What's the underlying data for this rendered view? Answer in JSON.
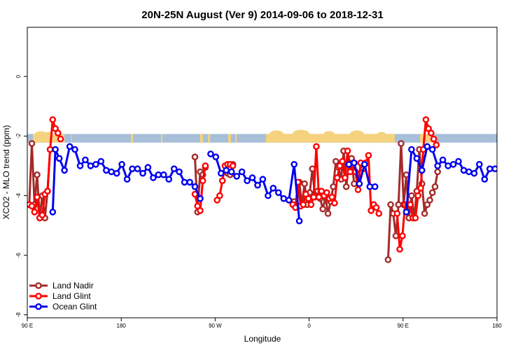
{
  "chart_data": {
    "type": "line",
    "title": "20N-25N August (Ver 9)   2014-09-06 to 2018-12-31",
    "xlabel": "Longitude",
    "ylabel": "XCO2 - MLO trend (ppm)",
    "xlim": [
      0,
      360
    ],
    "ylim": [
      -8.1,
      1.65
    ],
    "x_ticks": [
      {
        "value": 0,
        "label": "90 E"
      },
      {
        "value": 72,
        "label": "180"
      },
      {
        "value": 144,
        "label": "90 W"
      },
      {
        "value": 216,
        "label": "0"
      },
      {
        "value": 288,
        "label": "90 E"
      },
      {
        "value": 360,
        "label": "180"
      }
    ],
    "y_ticks": [
      {
        "value": 0,
        "label": "0"
      },
      {
        "value": -2,
        "label": "-2"
      },
      {
        "value": -4,
        "label": "-4"
      },
      {
        "value": -6,
        "label": "-6"
      },
      {
        "value": -8,
        "label": "-8"
      }
    ],
    "land_strip": {
      "y_top": -1.93,
      "y_bottom": -2.22,
      "ocean_color": "#a7bfd8",
      "land_color": "#f5d27e"
    },
    "legend_position": "bottom-left",
    "series": [
      {
        "name": "Land Nadir",
        "color": "#a52a2a",
        "x": [
          1.5,
          3.5,
          5.5,
          7.5,
          9.5,
          11.5,
          13.5,
          15.5,
          17.5,
          128.5,
          130.5,
          132.5,
          134.5,
          136.5,
          153.5,
          155.5,
          157.5,
          204.5,
          206.5,
          208.5,
          210.5,
          212.5,
          214.5,
          216.5,
          218.5,
          220.5,
          222.5,
          224.5,
          226.5,
          228.5,
          230.5,
          232.5,
          234.5,
          236.5,
          238.5,
          240.5,
          242.5,
          244.5,
          246.5,
          248.5,
          250.5,
          276.5,
          278.5,
          280.5,
          282.5,
          284.5,
          286.5,
          288.5,
          290.5,
          292.5,
          294.5,
          296.5,
          298.5,
          300.5,
          302.5,
          304.5,
          306.5,
          308.5,
          310.5,
          312.5,
          314.5
        ],
        "y": [
          -4.3,
          -2.25,
          -4.3,
          -3.3,
          -4.75,
          -4.0,
          -4.75,
          -3.85,
          -2.45,
          -2.7,
          -4.55,
          -3.2,
          -3.3,
          -3.05,
          -3.25,
          -3.3,
          -2.95,
          -4.2,
          -4.35,
          -3.55,
          -4.3,
          -3.6,
          -4.3,
          -3.9,
          -3.1,
          -4.05,
          -3.85,
          -4.1,
          -4.45,
          -4.05,
          -4.6,
          -4.2,
          -3.7,
          -2.85,
          -3.05,
          -3.45,
          -2.5,
          -3.7,
          -2.9,
          -2.75,
          -3.6,
          -6.15,
          -4.3,
          -4.6,
          -5.35,
          -4.3,
          -2.25,
          -4.3,
          -3.3,
          -4.75,
          -4.0,
          -4.75,
          -3.85,
          -2.45,
          -3.6,
          -4.6,
          -4.3,
          -4.15,
          -3.9,
          -3.7,
          -3.2
        ]
      },
      {
        "name": "Land Glint",
        "color": "#ff0000",
        "x": [
          1.5,
          3.5,
          5.5,
          7.5,
          9.5,
          11.5,
          13.5,
          15.5,
          17.5,
          19.5,
          21.5,
          23.5,
          25.5,
          128.5,
          130.5,
          132.5,
          134.5,
          136.5,
          145.5,
          147.5,
          149.5,
          151.5,
          153.5,
          155.5,
          157.5,
          203.5,
          205.5,
          207.5,
          209.5,
          211.5,
          213.5,
          215.5,
          217.5,
          219.5,
          221.5,
          223.5,
          225.5,
          227.5,
          229.5,
          231.5,
          233.5,
          235.5,
          237.5,
          239.5,
          241.5,
          243.5,
          245.5,
          247.5,
          249.5,
          251.5,
          253.5,
          255.5,
          257.5,
          259.5,
          261.5,
          263.5,
          265.5,
          267.5,
          269.5,
          283.5,
          285.5,
          287.5,
          289.5,
          291.5,
          293.5,
          295.5,
          297.5,
          299.5,
          301.5,
          303.5,
          305.5,
          307.5,
          309.5,
          311.5,
          313.5
        ],
        "y": [
          -4.3,
          -4.35,
          -4.55,
          -4.05,
          -4.75,
          -4.65,
          -3.95,
          -3.85,
          -2.45,
          -1.45,
          -1.75,
          -1.9,
          -2.1,
          -3.95,
          -4.35,
          -4.5,
          -3.5,
          -3.0,
          -4.15,
          -4.0,
          -3.5,
          -3.0,
          -2.95,
          -2.95,
          -3.0,
          -4.3,
          -4.4,
          -3.55,
          -4.35,
          -4.3,
          -3.95,
          -4.1,
          -4.3,
          -4.05,
          -2.35,
          -4.05,
          -3.85,
          -4.0,
          -3.9,
          -4.1,
          -4.05,
          -4.25,
          -3.4,
          -3.0,
          -2.85,
          -3.4,
          -2.5,
          -3.2,
          -2.95,
          -3.2,
          -3.8,
          -2.9,
          -3.1,
          -2.9,
          -2.65,
          -4.5,
          -4.3,
          -4.4,
          -4.6,
          -4.6,
          -5.8,
          -5.35,
          -4.3,
          -4.3,
          -4.3,
          -4.75,
          -4.75,
          -4.0,
          -3.75,
          -2.45,
          -1.45,
          -1.75,
          -1.9,
          -2.1,
          -2.3
        ]
      },
      {
        "name": "Ocean Glint",
        "color": "#0000ee",
        "x": [
          19.5,
          21.5,
          24.5,
          28.5,
          32.5,
          36.5,
          40.5,
          44.5,
          48.5,
          52.5,
          56.5,
          60.5,
          64.5,
          68.5,
          72.5,
          76.5,
          80.5,
          84.5,
          88.5,
          92.5,
          96.5,
          100.5,
          104.5,
          108.5,
          112.5,
          116.5,
          120.5,
          124.5,
          128.5,
          132.5,
          140.5,
          144.5,
          148.5,
          152.5,
          156.5,
          160.5,
          164.5,
          168.5,
          172.5,
          176.5,
          180.5,
          184.5,
          188.5,
          192.5,
          196.5,
          200.5,
          204.5,
          208.5,
          246.5,
          250.5,
          254.5,
          258.5,
          262.5,
          266.5,
          290.5,
          294.5,
          298.5,
          302.5,
          306.5,
          310.5,
          314.5,
          318.5,
          322.5,
          326.5,
          330.5,
          334.5,
          338.5,
          342.5,
          346.5,
          350.5,
          354.5,
          358.5,
          362.5,
          366.5
        ],
        "y": [
          -4.55,
          -2.45,
          -2.75,
          -3.15,
          -2.35,
          -2.45,
          -3.0,
          -2.8,
          -3.0,
          -2.95,
          -2.85,
          -3.15,
          -3.2,
          -3.25,
          -2.95,
          -3.45,
          -3.1,
          -3.1,
          -3.25,
          -3.05,
          -3.4,
          -3.3,
          -3.3,
          -3.45,
          -3.1,
          -3.2,
          -3.55,
          -3.55,
          -3.7,
          -4.1,
          -2.6,
          -2.7,
          -3.25,
          -3.15,
          -3.2,
          -3.35,
          -3.2,
          -3.5,
          -3.4,
          -3.65,
          -3.45,
          -4.0,
          -3.75,
          -3.9,
          -4.1,
          -4.15,
          -2.95,
          -4.85,
          -2.95,
          -2.9,
          -3.6,
          -2.95,
          -3.7,
          -3.7,
          -4.55,
          -2.45,
          -2.75,
          -3.15,
          -2.35,
          -2.45,
          -3.0,
          -2.8,
          -3.0,
          -2.95,
          -2.85,
          -3.15,
          -3.2,
          -3.25,
          -2.95,
          -3.45,
          -3.1,
          -3.1,
          -3.25,
          -3.05
        ]
      }
    ]
  }
}
